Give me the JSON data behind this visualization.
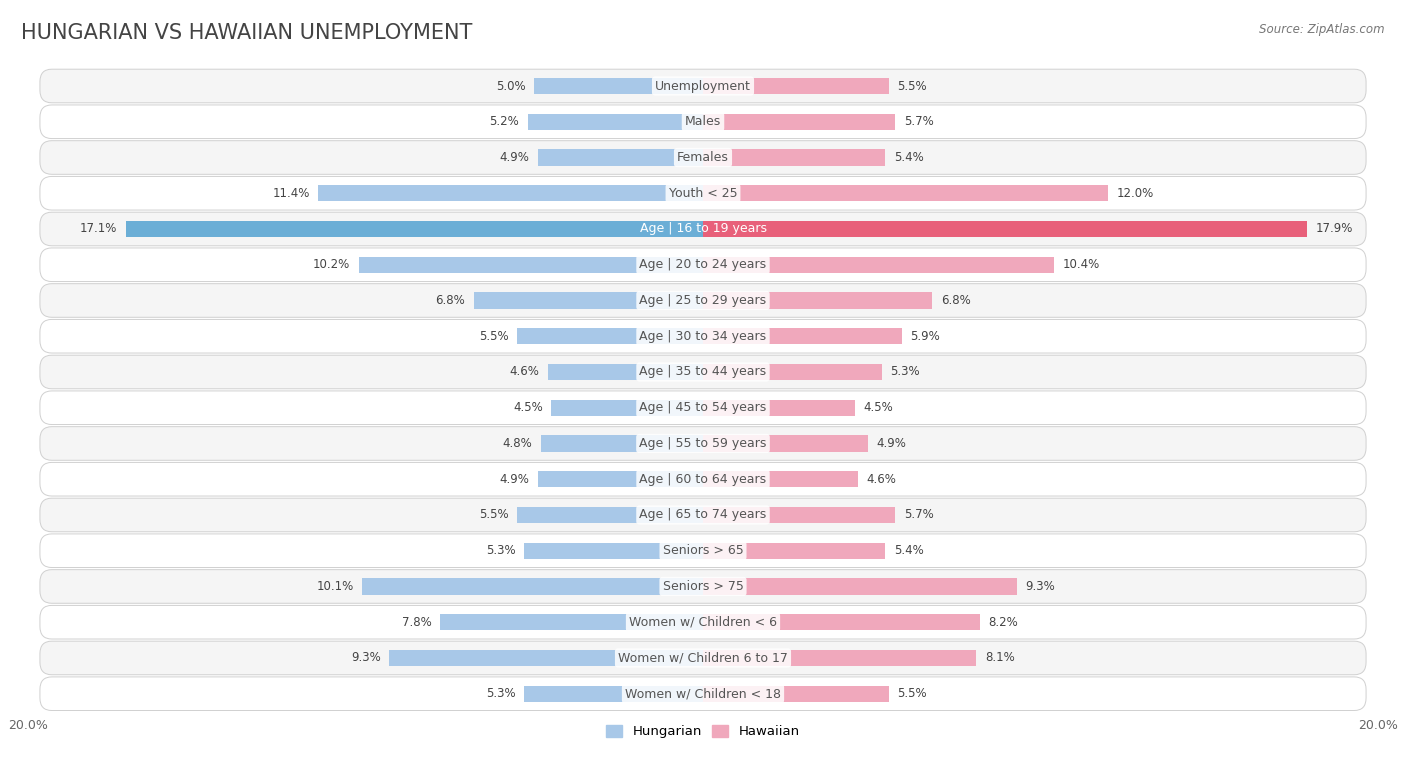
{
  "title": "HUNGARIAN VS HAWAIIAN UNEMPLOYMENT",
  "source": "Source: ZipAtlas.com",
  "categories": [
    "Unemployment",
    "Males",
    "Females",
    "Youth < 25",
    "Age | 16 to 19 years",
    "Age | 20 to 24 years",
    "Age | 25 to 29 years",
    "Age | 30 to 34 years",
    "Age | 35 to 44 years",
    "Age | 45 to 54 years",
    "Age | 55 to 59 years",
    "Age | 60 to 64 years",
    "Age | 65 to 74 years",
    "Seniors > 65",
    "Seniors > 75",
    "Women w/ Children < 6",
    "Women w/ Children 6 to 17",
    "Women w/ Children < 18"
  ],
  "hungarian": [
    5.0,
    5.2,
    4.9,
    11.4,
    17.1,
    10.2,
    6.8,
    5.5,
    4.6,
    4.5,
    4.8,
    4.9,
    5.5,
    5.3,
    10.1,
    7.8,
    9.3,
    5.3
  ],
  "hawaiian": [
    5.5,
    5.7,
    5.4,
    12.0,
    17.9,
    10.4,
    6.8,
    5.9,
    5.3,
    4.5,
    4.9,
    4.6,
    5.7,
    5.4,
    9.3,
    8.2,
    8.1,
    5.5
  ],
  "hungarian_color": "#a8c8e8",
  "hawaiian_color": "#f0a8bc",
  "hungarian_highlight_color": "#6baed6",
  "hawaiian_highlight_color": "#e8607a",
  "bg_color": "#ffffff",
  "row_bg_even": "#f5f5f5",
  "row_bg_odd": "#ffffff",
  "row_border": "#d0d0d0",
  "max_val": 20.0,
  "legend_hungarian": "Hungarian",
  "legend_hawaiian": "Hawaiian",
  "title_fontsize": 15,
  "label_fontsize": 9,
  "value_fontsize": 8.5,
  "highlight_row": 4
}
